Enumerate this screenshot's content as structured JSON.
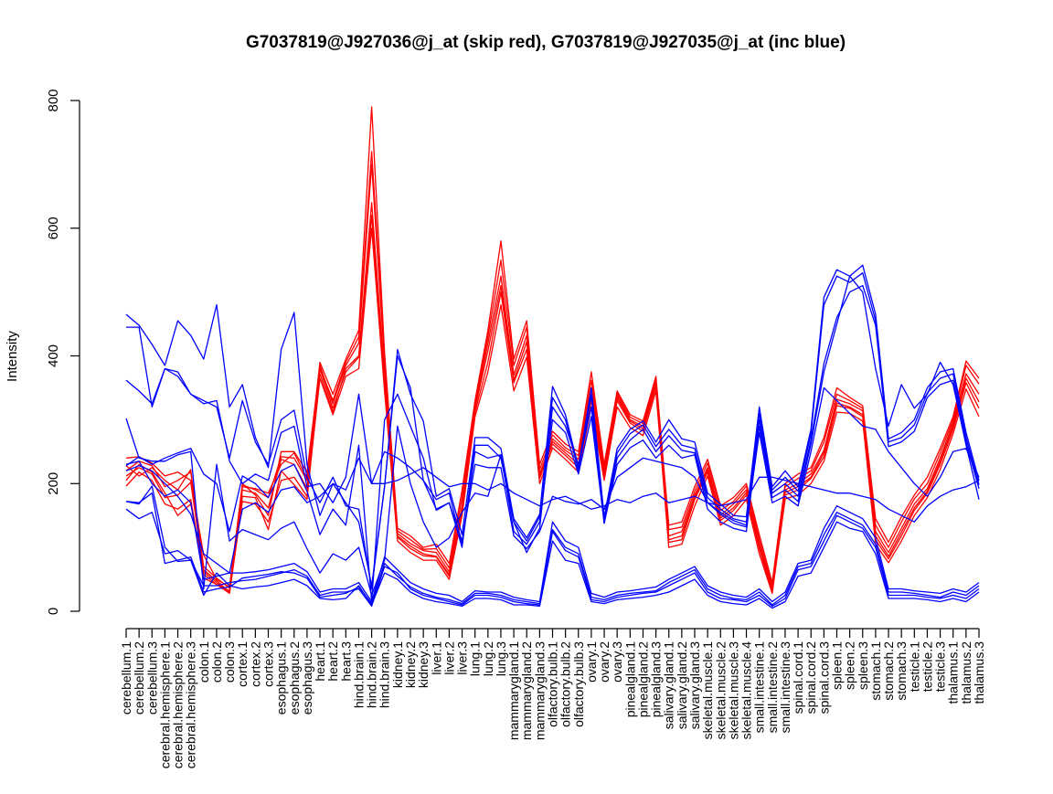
{
  "chart_data": {
    "type": "line",
    "title": "G7037819@J927036@j_at (skip red), G7037819@J927035@j_at (inc blue)",
    "xlabel": "",
    "ylabel": "Intensity",
    "ylim": [
      0,
      800
    ],
    "yticks": [
      0,
      200,
      400,
      600,
      800
    ],
    "grid": false,
    "legend": "none",
    "colors": {
      "skip": "#ff0000",
      "inc": "#0000ff",
      "axis": "#000000"
    },
    "categories": [
      "cerebellum.1",
      "cerebellum.2",
      "cerebellum.3",
      "cerebral.hemisphere.1",
      "cerebral.hemisphere.2",
      "cerebral.hemisphere.3",
      "colon.1",
      "colon.2",
      "colon.3",
      "cortex.1",
      "cortex.2",
      "cortex.3",
      "esophagus.1",
      "esophagus.2",
      "esophagus.3",
      "heart.1",
      "heart.2",
      "heart.3",
      "hind.brain.1",
      "hind.brain.2",
      "hind.brain.3",
      "kidney.1",
      "kidney.2",
      "kidney.3",
      "liver.1",
      "liver.2",
      "liver.3",
      "lung.1",
      "lung.2",
      "lung.3",
      "mammarygland.1",
      "mammarygland.2",
      "mammarygland.3",
      "olfactory.bulb.1",
      "olfactory.bulb.2",
      "olfactory.bulb.3",
      "ovary.1",
      "ovary.2",
      "ovary.3",
      "pinealgland.1",
      "pinealgland.2",
      "pinealgland.3",
      "salivary.gland.1",
      "salivary.gland.2",
      "salivary.gland.3",
      "skeletal.muscle.1",
      "skeletal.muscle.2",
      "skeletal.muscle.3",
      "skeletal.muscle.4",
      "small.intestine.1",
      "small.intestine.2",
      "small.intestine.3",
      "spinal.cord.1",
      "spinal.cord.2",
      "spinal.cord.3",
      "spleen.1",
      "spleen.2",
      "spleen.3",
      "stomach.1",
      "stomach.2",
      "stomach.3",
      "testicle.1",
      "testicle.2",
      "testicle.3",
      "thalamus.1",
      "thalamus.2",
      "thalamus.3"
    ],
    "series": [
      {
        "color": "#ff0000",
        "values": [
          240,
          242,
          232,
          212,
          218,
          205,
          88,
          50,
          38,
          195,
          192,
          185,
          230,
          248,
          208,
          390,
          340,
          395,
          440,
          790,
          405,
          130,
          118,
          100,
          105,
          75,
          190,
          330,
          440,
          580,
          395,
          455,
          230,
          282,
          262,
          250,
          375,
          230,
          345,
          308,
          298,
          368,
          135,
          140,
          195,
          238,
          165,
          178,
          200,
          120,
          45,
          200,
          215,
          225,
          272,
          350,
          335,
          322,
          145,
          108,
          148,
          182,
          210,
          255,
          305,
          392,
          365
        ]
      },
      {
        "color": "#ff0000",
        "values": [
          228,
          212,
          225,
          205,
          190,
          222,
          52,
          42,
          32,
          200,
          182,
          150,
          250,
          250,
          218,
          385,
          325,
          385,
          420,
          700,
          390,
          122,
          106,
          95,
          92,
          62,
          165,
          320,
          420,
          525,
          370,
          432,
          215,
          270,
          252,
          238,
          350,
          220,
          338,
          300,
          290,
          360,
          118,
          125,
          182,
          225,
          150,
          168,
          190,
          105,
          35,
          190,
          200,
          215,
          252,
          332,
          325,
          314,
          125,
          92,
          130,
          168,
          192,
          240,
          295,
          372,
          340
        ]
      },
      {
        "color": "#ff0000",
        "values": [
          205,
          230,
          218,
          185,
          150,
          168,
          65,
          48,
          30,
          180,
          178,
          128,
          220,
          198,
          175,
          380,
          318,
          375,
          398,
          620,
          360,
          116,
          98,
          87,
          85,
          55,
          158,
          312,
          390,
          500,
          358,
          410,
          208,
          262,
          244,
          225,
          330,
          212,
          330,
          295,
          282,
          352,
          108,
          112,
          175,
          218,
          142,
          158,
          182,
          98,
          30,
          182,
          190,
          208,
          242,
          322,
          318,
          305,
          112,
          82,
          118,
          158,
          185,
          230,
          285,
          358,
          318
        ]
      },
      {
        "color": "#ff0000",
        "values": [
          196,
          218,
          205,
          168,
          160,
          175,
          58,
          42,
          28,
          172,
          168,
          140,
          205,
          210,
          180,
          365,
          308,
          368,
          380,
          600,
          345,
          110,
          92,
          80,
          80,
          50,
          150,
          305,
          375,
          480,
          345,
          398,
          200,
          256,
          238,
          218,
          320,
          205,
          320,
          288,
          275,
          345,
          100,
          105,
          165,
          212,
          135,
          150,
          175,
          90,
          28,
          176,
          182,
          200,
          235,
          312,
          310,
          298,
          105,
          76,
          110,
          150,
          178,
          222,
          278,
          348,
          305
        ]
      },
      {
        "color": "#ff0000",
        "values": [
          212,
          225,
          215,
          178,
          182,
          202,
          62,
          45,
          30,
          190,
          185,
          162,
          238,
          230,
          192,
          372,
          312,
          380,
          400,
          640,
          370,
          118,
          102,
          90,
          86,
          58,
          160,
          318,
          408,
          510,
          362,
          422,
          212,
          266,
          248,
          230,
          340,
          216,
          334,
          298,
          286,
          356,
          112,
          118,
          178,
          222,
          146,
          162,
          186,
          100,
          32,
          186,
          195,
          210,
          248,
          326,
          320,
          308,
          118,
          86,
          124,
          162,
          188,
          235,
          290,
          365,
          328
        ]
      },
      {
        "color": "#ff0000",
        "values": [
          220,
          235,
          228,
          195,
          205,
          218,
          70,
          52,
          36,
          198,
          190,
          178,
          242,
          240,
          205,
          382,
          330,
          390,
          430,
          720,
          398,
          126,
          112,
          97,
          98,
          68,
          178,
          325,
          430,
          550,
          385,
          445,
          222,
          276,
          256,
          244,
          362,
          225,
          342,
          304,
          294,
          364,
          128,
          132,
          188,
          232,
          158,
          172,
          196,
          112,
          40,
          195,
          208,
          220,
          265,
          340,
          330,
          318,
          135,
          100,
          140,
          176,
          200,
          248,
          300,
          385,
          356
        ]
      },
      {
        "color": "#0000ff",
        "values": [
          465,
          448,
          418,
          385,
          455,
          432,
          395,
          480,
          320,
          355,
          272,
          225,
          410,
          468,
          230,
          150,
          200,
          170,
          140,
          40,
          195,
          410,
          340,
          298,
          180,
          192,
          120,
          272,
          272,
          255,
          145,
          115,
          152,
          352,
          308,
          225,
          350,
          148,
          255,
          285,
          298,
          265,
          300,
          270,
          265,
          185,
          168,
          150,
          148,
          320,
          195,
          220,
          195,
          285,
          492,
          535,
          525,
          542,
          465,
          270,
          280,
          300,
          350,
          375,
          380,
          280,
          205
        ]
      },
      {
        "color": "#0000ff",
        "values": [
          445,
          445,
          320,
          380,
          375,
          340,
          330,
          320,
          240,
          330,
          265,
          230,
          300,
          315,
          210,
          170,
          210,
          165,
          160,
          35,
          195,
          400,
          350,
          205,
          160,
          170,
          100,
          260,
          260,
          240,
          140,
          110,
          148,
          335,
          300,
          220,
          338,
          142,
          248,
          278,
          292,
          258,
          285,
          260,
          255,
          178,
          160,
          145,
          140,
          310,
          190,
          210,
          188,
          278,
          480,
          525,
          515,
          530,
          455,
          265,
          272,
          292,
          342,
          365,
          372,
          272,
          198
        ]
      },
      {
        "color": "#0000ff",
        "values": [
          362,
          345,
          325,
          380,
          368,
          340,
          325,
          330,
          235,
          200,
          215,
          205,
          280,
          290,
          195,
          200,
          170,
          210,
          340,
          200,
          250,
          240,
          225,
          205,
          175,
          185,
          105,
          250,
          240,
          245,
          125,
          105,
          140,
          300,
          280,
          215,
          305,
          138,
          240,
          268,
          285,
          250,
          275,
          252,
          248,
          170,
          152,
          138,
          132,
          300,
          185,
          200,
          180,
          268,
          388,
          460,
          500,
          510,
          448,
          258,
          265,
          282,
          335,
          355,
          362,
          265,
          192
        ]
      },
      {
        "color": "#0000ff",
        "values": [
          302,
          240,
          235,
          235,
          245,
          250,
          35,
          230,
          110,
          128,
          120,
          112,
          130,
          140,
          98,
          60,
          90,
          80,
          100,
          25,
          80,
          290,
          200,
          140,
          100,
          115,
          155,
          185,
          180,
          245,
          140,
          92,
          130,
          320,
          290,
          230,
          320,
          138,
          230,
          256,
          268,
          240,
          260,
          240,
          245,
          160,
          140,
          130,
          125,
          290,
          178,
          190,
          172,
          262,
          375,
          450,
          525,
          500,
          380,
          290,
          355,
          318,
          340,
          390,
          355,
          260,
          175
        ]
      },
      {
        "color": "#0000ff",
        "values": [
          228,
          242,
          230,
          240,
          248,
          255,
          215,
          200,
          125,
          212,
          200,
          178,
          220,
          230,
          188,
          120,
          160,
          135,
          260,
          15,
          300,
          340,
          290,
          240,
          158,
          170,
          110,
          230,
          225,
          225,
          118,
          98,
          125,
          180,
          172,
          168,
          175,
          160,
          210,
          225,
          240,
          235,
          230,
          225,
          210,
          170,
          155,
          142,
          135,
          280,
          170,
          180,
          165,
          250,
          350,
          330,
          310,
          290,
          285,
          250,
          225,
          200,
          180,
          210,
          250,
          255,
          210
        ]
      },
      {
        "color": "#0000ff",
        "values": [
          220,
          228,
          220,
          200,
          180,
          152,
          90,
          75,
          60,
          160,
          170,
          155,
          190,
          195,
          170,
          180,
          200,
          190,
          240,
          200,
          200,
          205,
          215,
          225,
          210,
          195,
          200,
          200,
          190,
          200,
          185,
          175,
          165,
          175,
          180,
          170,
          160,
          165,
          175,
          170,
          180,
          185,
          170,
          175,
          180,
          170,
          165,
          170,
          175,
          210,
          210,
          205,
          200,
          195,
          190,
          185,
          185,
          180,
          175,
          160,
          150,
          140,
          165,
          180,
          190,
          195,
          205
        ]
      },
      {
        "color": "#0000ff",
        "values": [
          172,
          168,
          196,
          100,
          78,
          80,
          25,
          60,
          40,
          35,
          38,
          40,
          45,
          50,
          40,
          20,
          18,
          20,
          40,
          10,
          60,
          50,
          30,
          20,
          15,
          12,
          8,
          20,
          20,
          18,
          10,
          10,
          8,
          110,
          80,
          75,
          15,
          12,
          18,
          20,
          22,
          25,
          30,
          40,
          50,
          25,
          15,
          12,
          10,
          20,
          5,
          15,
          55,
          60,
          100,
          140,
          130,
          125,
          90,
          20,
          20,
          20,
          18,
          15,
          20,
          15,
          30
        ]
      },
      {
        "color": "#0000ff",
        "values": [
          160,
          145,
          155,
          90,
          95,
          80,
          40,
          40,
          45,
          48,
          50,
          55,
          60,
          65,
          55,
          25,
          30,
          30,
          35,
          8,
          70,
          60,
          35,
          25,
          20,
          15,
          10,
          25,
          25,
          22,
          15,
          12,
          10,
          125,
          95,
          85,
          18,
          15,
          22,
          25,
          28,
          30,
          40,
          50,
          60,
          30,
          20,
          18,
          15,
          25,
          8,
          20,
          65,
          70,
          110,
          150,
          140,
          130,
          100,
          25,
          25,
          25,
          22,
          20,
          25,
          20,
          35
        ]
      },
      {
        "color": "#0000ff",
        "values": [
          172,
          170,
          185,
          75,
          80,
          85,
          30,
          35,
          38,
          52,
          55,
          58,
          62,
          60,
          52,
          22,
          25,
          28,
          38,
          12,
          75,
          55,
          38,
          28,
          22,
          18,
          12,
          28,
          28,
          25,
          18,
          15,
          12,
          128,
          100,
          90,
          22,
          18,
          25,
          28,
          30,
          32,
          45,
          55,
          65,
          35,
          25,
          20,
          18,
          30,
          10,
          25,
          70,
          75,
          120,
          155,
          145,
          135,
          105,
          30,
          30,
          28,
          25,
          22,
          30,
          25,
          40
        ]
      },
      {
        "color": "#0000ff",
        "values": [
          230,
          235,
          200,
          180,
          190,
          170,
          50,
          55,
          60,
          60,
          62,
          65,
          70,
          75,
          62,
          30,
          35,
          35,
          45,
          15,
          85,
          65,
          45,
          35,
          28,
          25,
          15,
          32,
          30,
          30,
          22,
          18,
          15,
          140,
          110,
          100,
          28,
          22,
          30,
          32,
          35,
          38,
          50,
          60,
          70,
          40,
          30,
          25,
          22,
          35,
          15,
          30,
          75,
          80,
          130,
          165,
          155,
          145,
          115,
          35,
          35,
          32,
          30,
          28,
          35,
          30,
          45
        ]
      }
    ]
  }
}
